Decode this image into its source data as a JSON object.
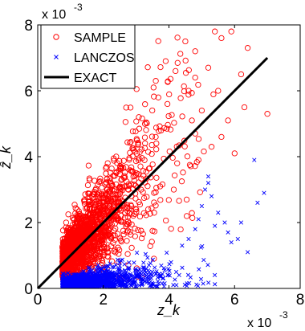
{
  "chart_data": {
    "type": "scatter",
    "title": "",
    "xlabel": "z_k",
    "ylabel": "ẑ_k",
    "xlim": [
      0,
      0.008
    ],
    "ylim": [
      0,
      0.008
    ],
    "x_ticks": [
      0,
      0.002,
      0.004,
      0.006,
      0.008
    ],
    "y_ticks": [
      0,
      0.002,
      0.004,
      0.006,
      0.008
    ],
    "x_tick_labels": [
      "0",
      "2",
      "4",
      "6",
      "8"
    ],
    "y_tick_labels": [
      "0",
      "2",
      "4",
      "6",
      "8"
    ],
    "x_multiplier": {
      "base": "x 10",
      "exponent": "-3"
    },
    "y_multiplier": {
      "base": "x 10",
      "exponent": "-3"
    },
    "legend_position": "top-left",
    "grid": false,
    "series": [
      {
        "name": "SAMPLE",
        "kind": "scatter",
        "marker": "circle",
        "color": "#ff0000",
        "approx_points": 1900,
        "x_range": [
          0.0007,
          0.0069
        ],
        "y_range": [
          0.0002,
          0.0079
        ],
        "trend": "scattered around y = x, spread grows with x",
        "sample_points": [
          [
            0.0059,
            0.0078
          ],
          [
            0.0056,
            0.0076
          ],
          [
            0.0054,
            0.0078
          ],
          [
            0.0064,
            0.0073
          ],
          [
            0.0045,
            0.0075
          ],
          [
            0.0048,
            0.0072
          ],
          [
            0.0039,
            0.0069
          ],
          [
            0.0042,
            0.0066
          ],
          [
            0.0036,
            0.0063
          ],
          [
            0.0048,
            0.0064
          ],
          [
            0.007,
            0.0053
          ],
          [
            0.0055,
            0.006
          ],
          [
            0.0062,
            0.0065
          ],
          [
            0.0052,
            0.0067
          ],
          [
            0.005,
            0.0054
          ],
          [
            0.0058,
            0.0051
          ],
          [
            0.0063,
            0.0055
          ],
          [
            0.0048,
            0.0047
          ],
          [
            0.0049,
            0.0039
          ],
          [
            0.0053,
            0.0043
          ],
          [
            0.0056,
            0.0046
          ],
          [
            0.006,
            0.0041
          ],
          [
            0.0047,
            0.0051
          ],
          [
            0.0046,
            0.006
          ]
        ]
      },
      {
        "name": "LANCZOS",
        "kind": "scatter",
        "marker": "x",
        "color": "#0000ff",
        "approx_points": 1500,
        "x_range": [
          0.0007,
          0.0069
        ],
        "y_range": [
          0.0,
          0.0039
        ],
        "trend": "band along the bottom well below y = x, spread grows with x",
        "sample_points": [
          [
            0.0066,
            0.0039
          ],
          [
            0.0069,
            0.0029
          ],
          [
            0.0067,
            0.0026
          ],
          [
            0.0052,
            0.0034
          ],
          [
            0.0052,
            0.0032
          ],
          [
            0.0051,
            0.003
          ],
          [
            0.0053,
            0.0028
          ],
          [
            0.005,
            0.0025
          ],
          [
            0.0055,
            0.0023
          ],
          [
            0.0057,
            0.002
          ],
          [
            0.0062,
            0.002
          ],
          [
            0.0049,
            0.0021
          ],
          [
            0.0054,
            0.0019
          ],
          [
            0.0058,
            0.0017
          ],
          [
            0.0064,
            0.0011
          ],
          [
            0.0048,
            0.0018
          ],
          [
            0.0061,
            0.0015
          ],
          [
            0.0046,
            0.0015
          ],
          [
            0.0059,
            0.0014
          ],
          [
            0.0044,
            0.0013
          ]
        ]
      },
      {
        "name": "EXACT",
        "kind": "line",
        "color": "#000000",
        "x": [
          0,
          0.007
        ],
        "y": [
          0,
          0.007
        ]
      }
    ]
  }
}
